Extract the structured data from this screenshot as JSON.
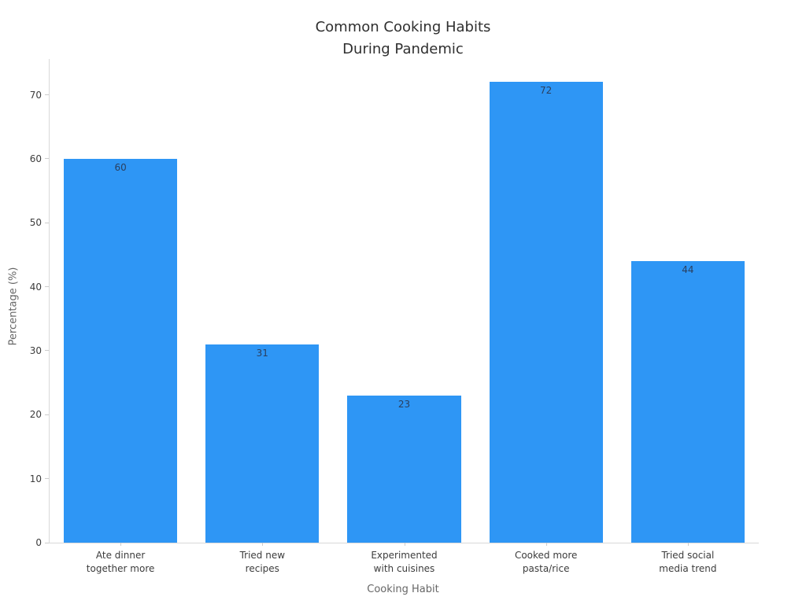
{
  "chart_data": {
    "type": "bar",
    "title": "Common Cooking Habits\nDuring Pandemic",
    "xlabel": "Cooking Habit",
    "ylabel": "Percentage (%)",
    "categories": [
      "Ate dinner\ntogether more",
      "Tried new\nrecipes",
      "Experimented\nwith cuisines",
      "Cooked more\npasta/rice",
      "Tried social\nmedia trend"
    ],
    "values": [
      60,
      31,
      23,
      72,
      44
    ],
    "value_labels": [
      "60",
      "31",
      "23",
      "72",
      "44"
    ],
    "yticks": [
      0,
      10,
      20,
      30,
      40,
      50,
      60,
      70
    ],
    "ylim": [
      0,
      75.6
    ],
    "grid": false,
    "legend": "none",
    "bar_color": "#2e96f5",
    "value_label_color": "#2a3f5f"
  }
}
